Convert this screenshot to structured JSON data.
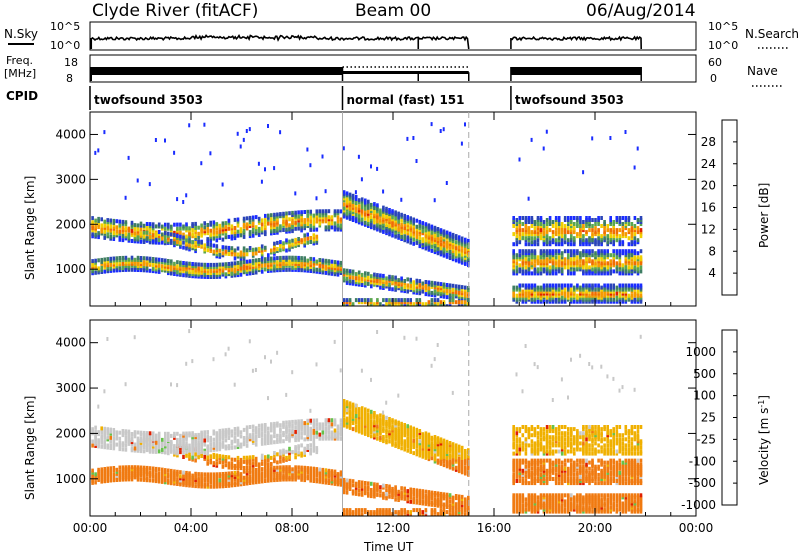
{
  "header": {
    "station": "Clyde River (fitACF)",
    "beam": "Beam 00",
    "date": "06/Aug/2014"
  },
  "top_panels": {
    "nsky_label": "N.Sky",
    "nsky_ticks": [
      "10^5",
      "10^0"
    ],
    "nsearch_label": "N.Search",
    "nsearch_ticks": [
      "10^5",
      "10^0"
    ],
    "freq_label_1": "Freq.",
    "freq_label_2": "[MHz]",
    "freq_ticks": [
      "18",
      "8"
    ],
    "nave_label": "Nave",
    "nave_ticks": [
      "60",
      "0"
    ],
    "cpid_label": "CPID",
    "cpid_segments": [
      {
        "name": "twofsound 3503",
        "start_h": 0.0,
        "end_h": 10.0
      },
      {
        "name": "normal (fast) 151",
        "start_h": 10.0,
        "end_h": 15.0
      },
      {
        "name": "twofsound 3503",
        "start_h": 16.67,
        "end_h": 21.83
      }
    ]
  },
  "chart_data": [
    {
      "type": "heatmap",
      "title": "",
      "xlabel": "",
      "ylabel": "Slant Range [km]",
      "x_ticks": [
        "00:00",
        "04:00",
        "08:00",
        "12:00",
        "16:00",
        "20:00",
        "00:00"
      ],
      "xlim": [
        0,
        24
      ],
      "ylim": [
        180,
        4500
      ],
      "y_ticks": [
        1000,
        2000,
        3000,
        4000
      ],
      "colorbar_label": "Power [dB]",
      "colorbar_ticks": [
        4,
        8,
        12,
        16,
        20,
        24,
        28
      ],
      "colorbar_range": [
        0,
        32
      ],
      "colors": [
        "#1a2cff",
        "#2a44b8",
        "#3e7d63",
        "#5aa64e",
        "#f0d000",
        "#f59a00",
        "#f06e00",
        "#e02200"
      ],
      "data_gap_h": [
        15.0,
        16.67
      ],
      "vertical_markers_h": [
        10.0,
        15.0
      ]
    },
    {
      "type": "heatmap",
      "title": "",
      "xlabel": "Time UT",
      "ylabel": "Slant Range [km]",
      "x_ticks": [
        "00:00",
        "04:00",
        "08:00",
        "12:00",
        "16:00",
        "20:00",
        "00:00"
      ],
      "xlim": [
        0,
        24
      ],
      "ylim": [
        180,
        4500
      ],
      "y_ticks": [
        1000,
        2000,
        3000,
        4000
      ],
      "colorbar_label": "Velocity [m s^-1]",
      "colorbar_ticks": [
        "1000",
        "500",
        "100",
        "25",
        "-25",
        "-100",
        "-500",
        "-1000"
      ],
      "colors": [
        "#2a3cc8",
        "#3a6a8c",
        "#3e8a5a",
        "#66c24a",
        "#c8c8c8",
        "#f0b000",
        "#f07a10",
        "#e02000"
      ],
      "data_gap_h": [
        15.0,
        16.67
      ],
      "vertical_markers_h": [
        10.0,
        15.0
      ]
    }
  ]
}
